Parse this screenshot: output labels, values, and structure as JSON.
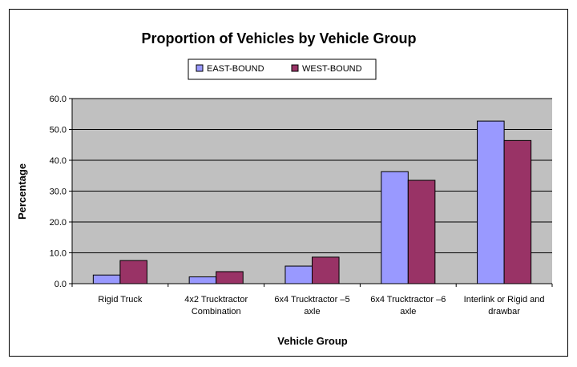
{
  "chart_data": {
    "type": "bar",
    "title": "Proportion of Vehicles by Vehicle Group",
    "xlabel": "Vehicle Group",
    "ylabel": "Percentage",
    "ylim": [
      0,
      60
    ],
    "yticks": [
      "0.0",
      "10.0",
      "20.0",
      "30.0",
      "40.0",
      "50.0",
      "60.0"
    ],
    "categories": [
      [
        "Rigid Truck"
      ],
      [
        "4x2 Trucktractor",
        "Combination"
      ],
      [
        "6x4 Trucktractor –5",
        "axle"
      ],
      [
        "6x4 Trucktractor –6",
        "axle"
      ],
      [
        "Interlink or Rigid and",
        "drawbar"
      ]
    ],
    "series": [
      {
        "name": "EAST-BOUND",
        "color": "#9999ff",
        "values": [
          2.8,
          2.2,
          5.7,
          36.3,
          52.7
        ]
      },
      {
        "name": "WEST-BOUND",
        "color": "#993366",
        "values": [
          7.5,
          3.9,
          8.6,
          33.5,
          46.4
        ]
      }
    ],
    "grid": true,
    "plot_background": "#c0c0c0",
    "legend_position": "top-center"
  }
}
